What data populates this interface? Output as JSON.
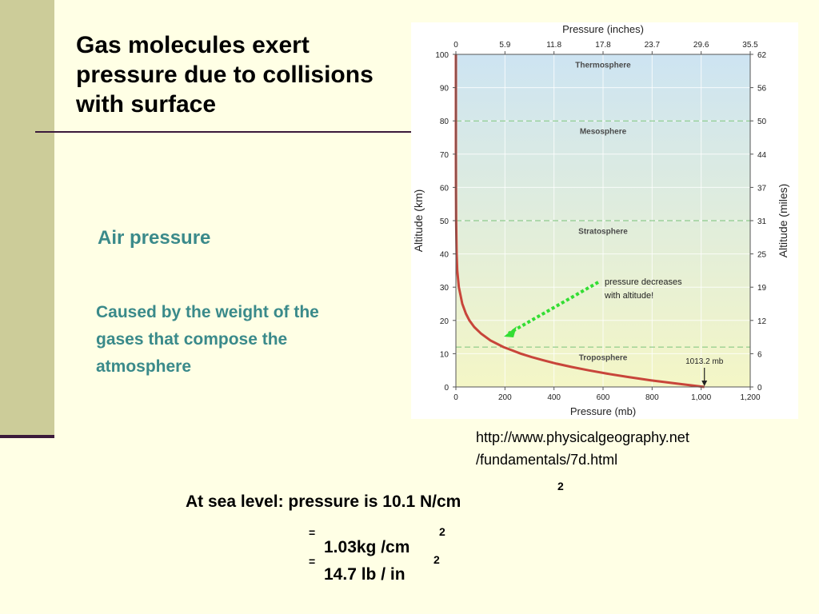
{
  "slide": {
    "title": "Gas molecules exert pressure due to collisions with surface",
    "subheading": "Air pressure",
    "body": "Caused by the weight of the gases that compose the atmosphere",
    "source_line1": "http://www.physicalgeography.net",
    "source_line2": "/fundamentals/7d.html",
    "eq1_text": "At sea level: pressure is 10.1 N/cm",
    "eq1_sup": "2",
    "eq2_prefix": "=",
    "eq2_text": "1.03kg /cm",
    "eq2_sup": "2",
    "eq3_prefix": "=",
    "eq3_text": "14.7 lb / in",
    "eq3_sup": "2"
  },
  "colors": {
    "background": "#FFFFE5",
    "left_band": "#CCCC99",
    "rule": "#3B1A3B",
    "accent_teal": "#3A8A8A",
    "curve": "#C8453A",
    "arrow_green": "#33DD33",
    "layer_line": "#7BC47B",
    "sky_top": "#CDE4F2",
    "sky_bottom": "#F4F6C6"
  },
  "chart_data": {
    "type": "line",
    "title": "Pressure (inches)",
    "xlabel": "Pressure (mb)",
    "ylabel_left": "Altitude (km)",
    "ylabel_right": "Altitude (miles)",
    "xlim": [
      0,
      1200
    ],
    "ylim": [
      0,
      100
    ],
    "x_ticks": [
      "0",
      "200",
      "400",
      "600",
      "800",
      "1,000",
      "1,200"
    ],
    "x_tick_values": [
      0,
      200,
      400,
      600,
      800,
      1000,
      1200
    ],
    "top_ticks": [
      "0",
      "5.9",
      "11.8",
      "17.8",
      "23.7",
      "29.6",
      "35.5"
    ],
    "y_ticks": [
      "0",
      "10",
      "20",
      "30",
      "40",
      "50",
      "60",
      "70",
      "80",
      "90",
      "100"
    ],
    "y_tick_values": [
      0,
      10,
      20,
      30,
      40,
      50,
      60,
      70,
      80,
      90,
      100
    ],
    "right_ticks": [
      "0",
      "6",
      "12",
      "19",
      "25",
      "31",
      "37",
      "44",
      "50",
      "56",
      "62"
    ],
    "grid": true,
    "layers": [
      {
        "name": "Troposphere",
        "label_alt": 9,
        "top": 12
      },
      {
        "name": "Stratosphere",
        "label_alt": 47,
        "top": 50
      },
      {
        "name": "Mesosphere",
        "label_alt": 77,
        "top": 80
      },
      {
        "name": "Thermosphere",
        "label_alt": 97,
        "top": null
      }
    ],
    "series": [
      {
        "x": [
          1013.2,
          900,
          795,
          701,
          617,
          541,
          472,
          411,
          357,
          308,
          265,
          194,
          141,
          103,
          75,
          55,
          41,
          26,
          12,
          5.7,
          2.9,
          1.1,
          0.4,
          0.1,
          0.03,
          0.005
        ],
        "y": [
          0,
          1,
          2,
          3,
          4,
          5,
          6,
          7,
          8,
          9,
          10,
          12,
          14,
          16,
          18,
          20,
          22,
          25,
          30,
          35,
          40,
          50,
          60,
          70,
          80,
          100
        ]
      }
    ],
    "annotations": [
      {
        "text_line1": "pressure decreases",
        "text_line2": "with altitude!"
      },
      {
        "text": "1013.2 mb",
        "x": 1013.2,
        "y": 0
      }
    ]
  }
}
